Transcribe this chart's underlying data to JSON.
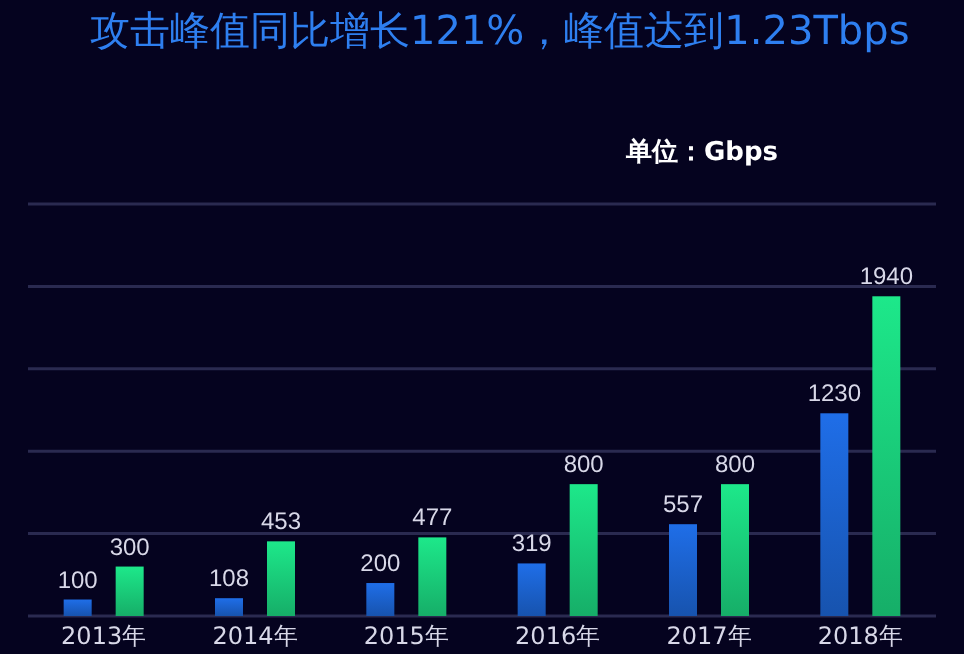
{
  "chart_data": {
    "type": "bar",
    "title": "攻击峰值同比增长121%，峰值达到1.23Tbps",
    "annotations": [
      "单位：Gbps"
    ],
    "categories": [
      "2013年",
      "2014年",
      "2015年",
      "2016年",
      "2017年",
      "2018年"
    ],
    "series": [
      {
        "color": "#1f6ee8",
        "values": [
          100,
          108,
          200,
          319,
          557,
          1230
        ]
      },
      {
        "color": "#1de88a",
        "values": [
          300,
          453,
          477,
          800,
          800,
          1940
        ]
      }
    ],
    "ylim": [
      0,
      2500
    ],
    "yticks": [
      {
        "value": 0,
        "label": null
      },
      {
        "value": 500,
        "label": null
      },
      {
        "value": 1000,
        "label": null
      },
      {
        "value": 1500,
        "label": null
      },
      {
        "value": 2000,
        "label": null
      },
      {
        "value": 2500,
        "label": null
      }
    ],
    "grid": "y",
    "tick_labels": "x",
    "data_labels": true
  }
}
